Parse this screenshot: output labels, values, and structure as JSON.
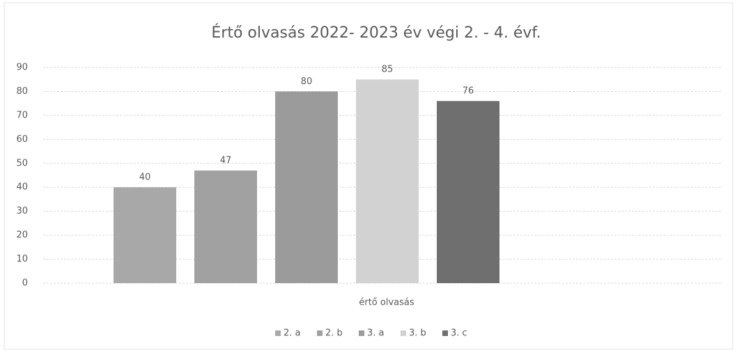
{
  "chart_data": {
    "type": "bar",
    "title": "Értő olvasás 2022- 2023 év végi 2. - 4. évf.",
    "categories": [
      "értő olvasás"
    ],
    "series": [
      {
        "name": "2. a",
        "color": "#a8a8a8",
        "values": [
          40
        ]
      },
      {
        "name": "2. b",
        "color": "#a1a1a1",
        "values": [
          47
        ]
      },
      {
        "name": "3. a",
        "color": "#9b9b9b",
        "values": [
          80
        ]
      },
      {
        "name": "3. b",
        "color": "#d2d2d2",
        "values": [
          85
        ]
      },
      {
        "name": "3. c",
        "color": "#6f6f6f",
        "values": [
          76
        ]
      }
    ],
    "ylim": [
      0,
      90
    ],
    "yticks": [
      0,
      10,
      20,
      30,
      40,
      50,
      60,
      70,
      80,
      90
    ],
    "grid": true,
    "legend": "bottom"
  }
}
